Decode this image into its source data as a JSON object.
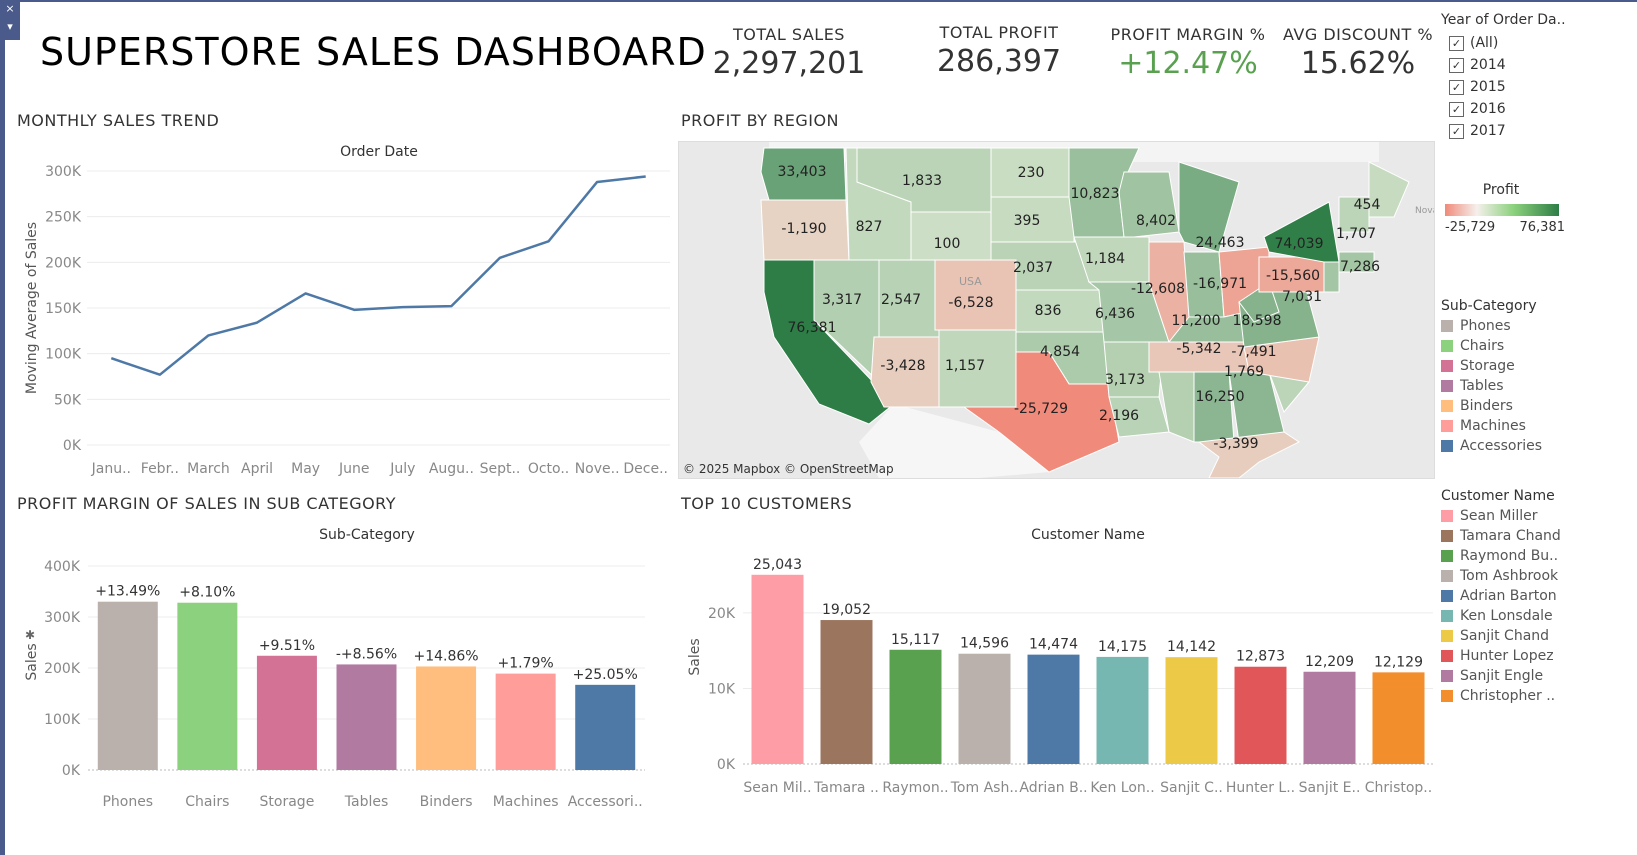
{
  "dashboard": {
    "title": "SUPERSTORE SALES DASHBOARD",
    "collapse_icon": "×",
    "menu_icon": "▾"
  },
  "kpis": [
    {
      "label": "TOTAL SALES",
      "value": "2,297,201",
      "color": "#333333"
    },
    {
      "label": "TOTAL PROFIT",
      "value": "286,397",
      "color": "#333333"
    },
    {
      "label": "PROFIT MARGIN %",
      "value": "+12.47%",
      "color": "#59a14f"
    },
    {
      "label": "AVG DISCOUNT %",
      "value": "15.62%",
      "color": "#333333"
    }
  ],
  "year_filter": {
    "title": "Year of Order Da..",
    "options": [
      "(All)",
      "2014",
      "2015",
      "2016",
      "2017"
    ],
    "check_mark": "✓"
  },
  "profit_legend": {
    "title": "Profit",
    "min": "-25,729",
    "max": "76,381",
    "low_color": "#f08a7a",
    "high_color": "#2e7d46"
  },
  "subcategory_legend": {
    "title": "Sub-Category",
    "items": [
      {
        "label": "Phones",
        "color": "#bab0ac"
      },
      {
        "label": "Chairs",
        "color": "#8cd17d"
      },
      {
        "label": "Storage",
        "color": "#d37295"
      },
      {
        "label": "Tables",
        "color": "#b07aa1"
      },
      {
        "label": "Binders",
        "color": "#ffbe7d"
      },
      {
        "label": "Machines",
        "color": "#ff9d9a"
      },
      {
        "label": "Accessories",
        "color": "#4e79a7"
      }
    ]
  },
  "customer_legend": {
    "title": "Customer Name",
    "items": [
      {
        "label": "Sean Miller",
        "color": "#ff9da7"
      },
      {
        "label": "Tamara Chand",
        "color": "#9c755f"
      },
      {
        "label": "Raymond Bu..",
        "color": "#59a14f"
      },
      {
        "label": "Tom Ashbrook",
        "color": "#bab0ac"
      },
      {
        "label": "Adrian Barton",
        "color": "#4e79a7"
      },
      {
        "label": "Ken Lonsdale",
        "color": "#76b7b2"
      },
      {
        "label": "Sanjit Chand",
        "color": "#edc948"
      },
      {
        "label": "Hunter Lopez",
        "color": "#e15759"
      },
      {
        "label": "Sanjit Engle",
        "color": "#b07aa1"
      },
      {
        "label": "Christopher ..",
        "color": "#f28e2b"
      }
    ]
  },
  "sections": {
    "monthly": "MONTHLY SALES TREND",
    "region": "PROFIT BY REGION",
    "subcat": "PROFIT MARGIN OF SALES IN SUB CATEGORY",
    "customers": "TOP 10 CUSTOMERS"
  },
  "map": {
    "attribution": "© 2025 Mapbox © OpenStreetMap",
    "country_label": "USA",
    "nova_label": "Nova",
    "states": [
      {
        "name": "WA",
        "value": "33,403"
      },
      {
        "name": "OR",
        "value": "-1,190"
      },
      {
        "name": "CA",
        "value": "76,381"
      },
      {
        "name": "ID",
        "value": "827"
      },
      {
        "name": "MT",
        "value": "1,833"
      },
      {
        "name": "WY",
        "value": "100"
      },
      {
        "name": "NV",
        "value": "3,317"
      },
      {
        "name": "UT",
        "value": "2,547"
      },
      {
        "name": "AZ",
        "value": "-3,428"
      },
      {
        "name": "CO",
        "value": "-6,528"
      },
      {
        "name": "NM",
        "value": "1,157"
      },
      {
        "name": "ND",
        "value": "230"
      },
      {
        "name": "SD",
        "value": "395"
      },
      {
        "name": "NE",
        "value": "2,037"
      },
      {
        "name": "KS",
        "value": "836"
      },
      {
        "name": "OK",
        "value": "4,854"
      },
      {
        "name": "TX",
        "value": "-25,729"
      },
      {
        "name": "MN",
        "value": "10,823"
      },
      {
        "name": "IA",
        "value": "1,184"
      },
      {
        "name": "MO",
        "value": "6,436"
      },
      {
        "name": "AR",
        "value": "3,173"
      },
      {
        "name": "LA",
        "value": "2,196"
      },
      {
        "name": "WI",
        "value": "8,402"
      },
      {
        "name": "IL",
        "value": "-12,608"
      },
      {
        "name": "MI",
        "value": "24,463"
      },
      {
        "name": "IN",
        "value": "11,200"
      },
      {
        "name": "OH",
        "value": "-16,971"
      },
      {
        "name": "KY",
        "value": "11,200"
      },
      {
        "name": "TN",
        "value": "-5,342"
      },
      {
        "name": "MS",
        "value": "3,173"
      },
      {
        "name": "AL",
        "value": "16,250"
      },
      {
        "name": "GA",
        "value": "16,250"
      },
      {
        "name": "FL",
        "value": "-3,399"
      },
      {
        "name": "SC",
        "value": "1,769"
      },
      {
        "name": "NC",
        "value": "-7,491"
      },
      {
        "name": "VA",
        "value": "18,598"
      },
      {
        "name": "WV",
        "value": "18,598"
      },
      {
        "name": "PA",
        "value": "-15,560"
      },
      {
        "name": "NY",
        "value": "74,039"
      },
      {
        "name": "VT",
        "value": "1,707"
      },
      {
        "name": "ME",
        "value": "454"
      },
      {
        "name": "NJ",
        "value": "7,031"
      },
      {
        "name": "CT",
        "value": "7,286"
      }
    ],
    "labels": [
      {
        "state": "WA",
        "text": "33,403"
      },
      {
        "state": "OR",
        "text": "-1,190"
      },
      {
        "state": "CA",
        "text": "76,381"
      },
      {
        "state": "ID",
        "text": "827"
      },
      {
        "state": "MT",
        "text": "1,833"
      },
      {
        "state": "WY",
        "text": "100"
      },
      {
        "state": "NV",
        "text": "3,317"
      },
      {
        "state": "UT",
        "text": "2,547"
      },
      {
        "state": "AZ",
        "text": "-3,428"
      },
      {
        "state": "CO",
        "text": "-6,528"
      },
      {
        "state": "NM",
        "text": "1,157"
      },
      {
        "state": "ND",
        "text": "230"
      },
      {
        "state": "SD",
        "text": "395"
      },
      {
        "state": "NE",
        "text": "2,037"
      },
      {
        "state": "KS",
        "text": "836"
      },
      {
        "state": "OK",
        "text": "4,854"
      },
      {
        "state": "TX",
        "text": "-25,729"
      },
      {
        "state": "MN",
        "text": "10,823"
      },
      {
        "state": "IA",
        "text": "1,184"
      },
      {
        "state": "MO",
        "text": "6,436"
      },
      {
        "state": "AR",
        "text": "3,173"
      },
      {
        "state": "LA",
        "text": "2,196"
      },
      {
        "state": "WI",
        "text": "8,402"
      },
      {
        "state": "IL",
        "text": "-12,608"
      },
      {
        "state": "MI",
        "text": "24,463"
      },
      {
        "state": "IN",
        "text": "11,200"
      },
      {
        "state": "OH",
        "text": "-16,971"
      },
      {
        "state": "TN",
        "text": "-5,342"
      },
      {
        "state": "GA",
        "text": "16,250"
      },
      {
        "state": "FL",
        "text": "-3,399"
      },
      {
        "state": "SC",
        "text": "1,769"
      },
      {
        "state": "NC",
        "text": "-7,491"
      },
      {
        "state": "VA",
        "text": "18,598"
      },
      {
        "state": "PA",
        "text": "-15,560"
      },
      {
        "state": "NY",
        "text": "74,039"
      },
      {
        "state": "VT",
        "text": "1,707"
      },
      {
        "state": "ME",
        "text": "454"
      },
      {
        "state": "NJ",
        "text": "7,031"
      },
      {
        "state": "CT",
        "text": "7,286"
      }
    ]
  },
  "chart_data": [
    {
      "type": "line",
      "title": "Order Date",
      "xlabel": "",
      "ylabel": "Moving Average of Sales",
      "categories": [
        "Janu..",
        "Febr..",
        "March",
        "April",
        "May",
        "June",
        "July",
        "Augu..",
        "Sept..",
        "Octo..",
        "Nove..",
        "Dece.."
      ],
      "values": [
        95000,
        77000,
        120000,
        134000,
        166000,
        148000,
        151000,
        152000,
        205000,
        223000,
        288000,
        294000
      ],
      "ylim": [
        0,
        300000
      ],
      "yticks": [
        0,
        50000,
        100000,
        150000,
        200000,
        250000,
        300000
      ],
      "ytick_labels": [
        "0K",
        "50K",
        "100K",
        "150K",
        "200K",
        "250K",
        "300K"
      ],
      "color": "#4e79a7"
    },
    {
      "type": "bar",
      "title": "Sub-Category",
      "xlabel": "",
      "ylabel": "Sales",
      "ylabel_icon": "✱",
      "categories": [
        "Phones",
        "Chairs",
        "Storage",
        "Tables",
        "Binders",
        "Machines",
        "Accessori.."
      ],
      "values": [
        330000,
        328000,
        224000,
        207000,
        203000,
        189000,
        167000
      ],
      "data_labels": [
        "+13.49%",
        "+8.10%",
        "+9.51%",
        "-+8.56%",
        "+14.86%",
        "+1.79%",
        "+25.05%"
      ],
      "colors": [
        "#bab0ac",
        "#8cd17d",
        "#d37295",
        "#b07aa1",
        "#ffbe7d",
        "#ff9d9a",
        "#4e79a7"
      ],
      "ylim": [
        0,
        400000
      ],
      "yticks": [
        0,
        100000,
        200000,
        300000,
        400000
      ],
      "ytick_labels": [
        "0K",
        "100K",
        "200K",
        "300K",
        "400K"
      ]
    },
    {
      "type": "bar",
      "title": "Customer Name",
      "xlabel": "",
      "ylabel": "Sales",
      "categories": [
        "Sean Mil..",
        "Tamara ..",
        "Raymon..",
        "Tom Ash..",
        "Adrian B..",
        "Ken Lon..",
        "Sanjit C..",
        "Hunter L..",
        "Sanjit E..",
        "Christop.."
      ],
      "values": [
        25043,
        19052,
        15117,
        14596,
        14474,
        14175,
        14142,
        12873,
        12209,
        12129
      ],
      "data_labels": [
        "25,043",
        "19,052",
        "15,117",
        "14,596",
        "14,474",
        "14,175",
        "14,142",
        "12,873",
        "12,209",
        "12,129"
      ],
      "colors": [
        "#ff9da7",
        "#9c755f",
        "#59a14f",
        "#bab0ac",
        "#4e79a7",
        "#76b7b2",
        "#edc948",
        "#e15759",
        "#b07aa1",
        "#f28e2b"
      ],
      "ylim": [
        0,
        27000
      ],
      "yticks": [
        0,
        10000,
        20000
      ],
      "ytick_labels": [
        "0K",
        "10K",
        "20K"
      ]
    }
  ]
}
